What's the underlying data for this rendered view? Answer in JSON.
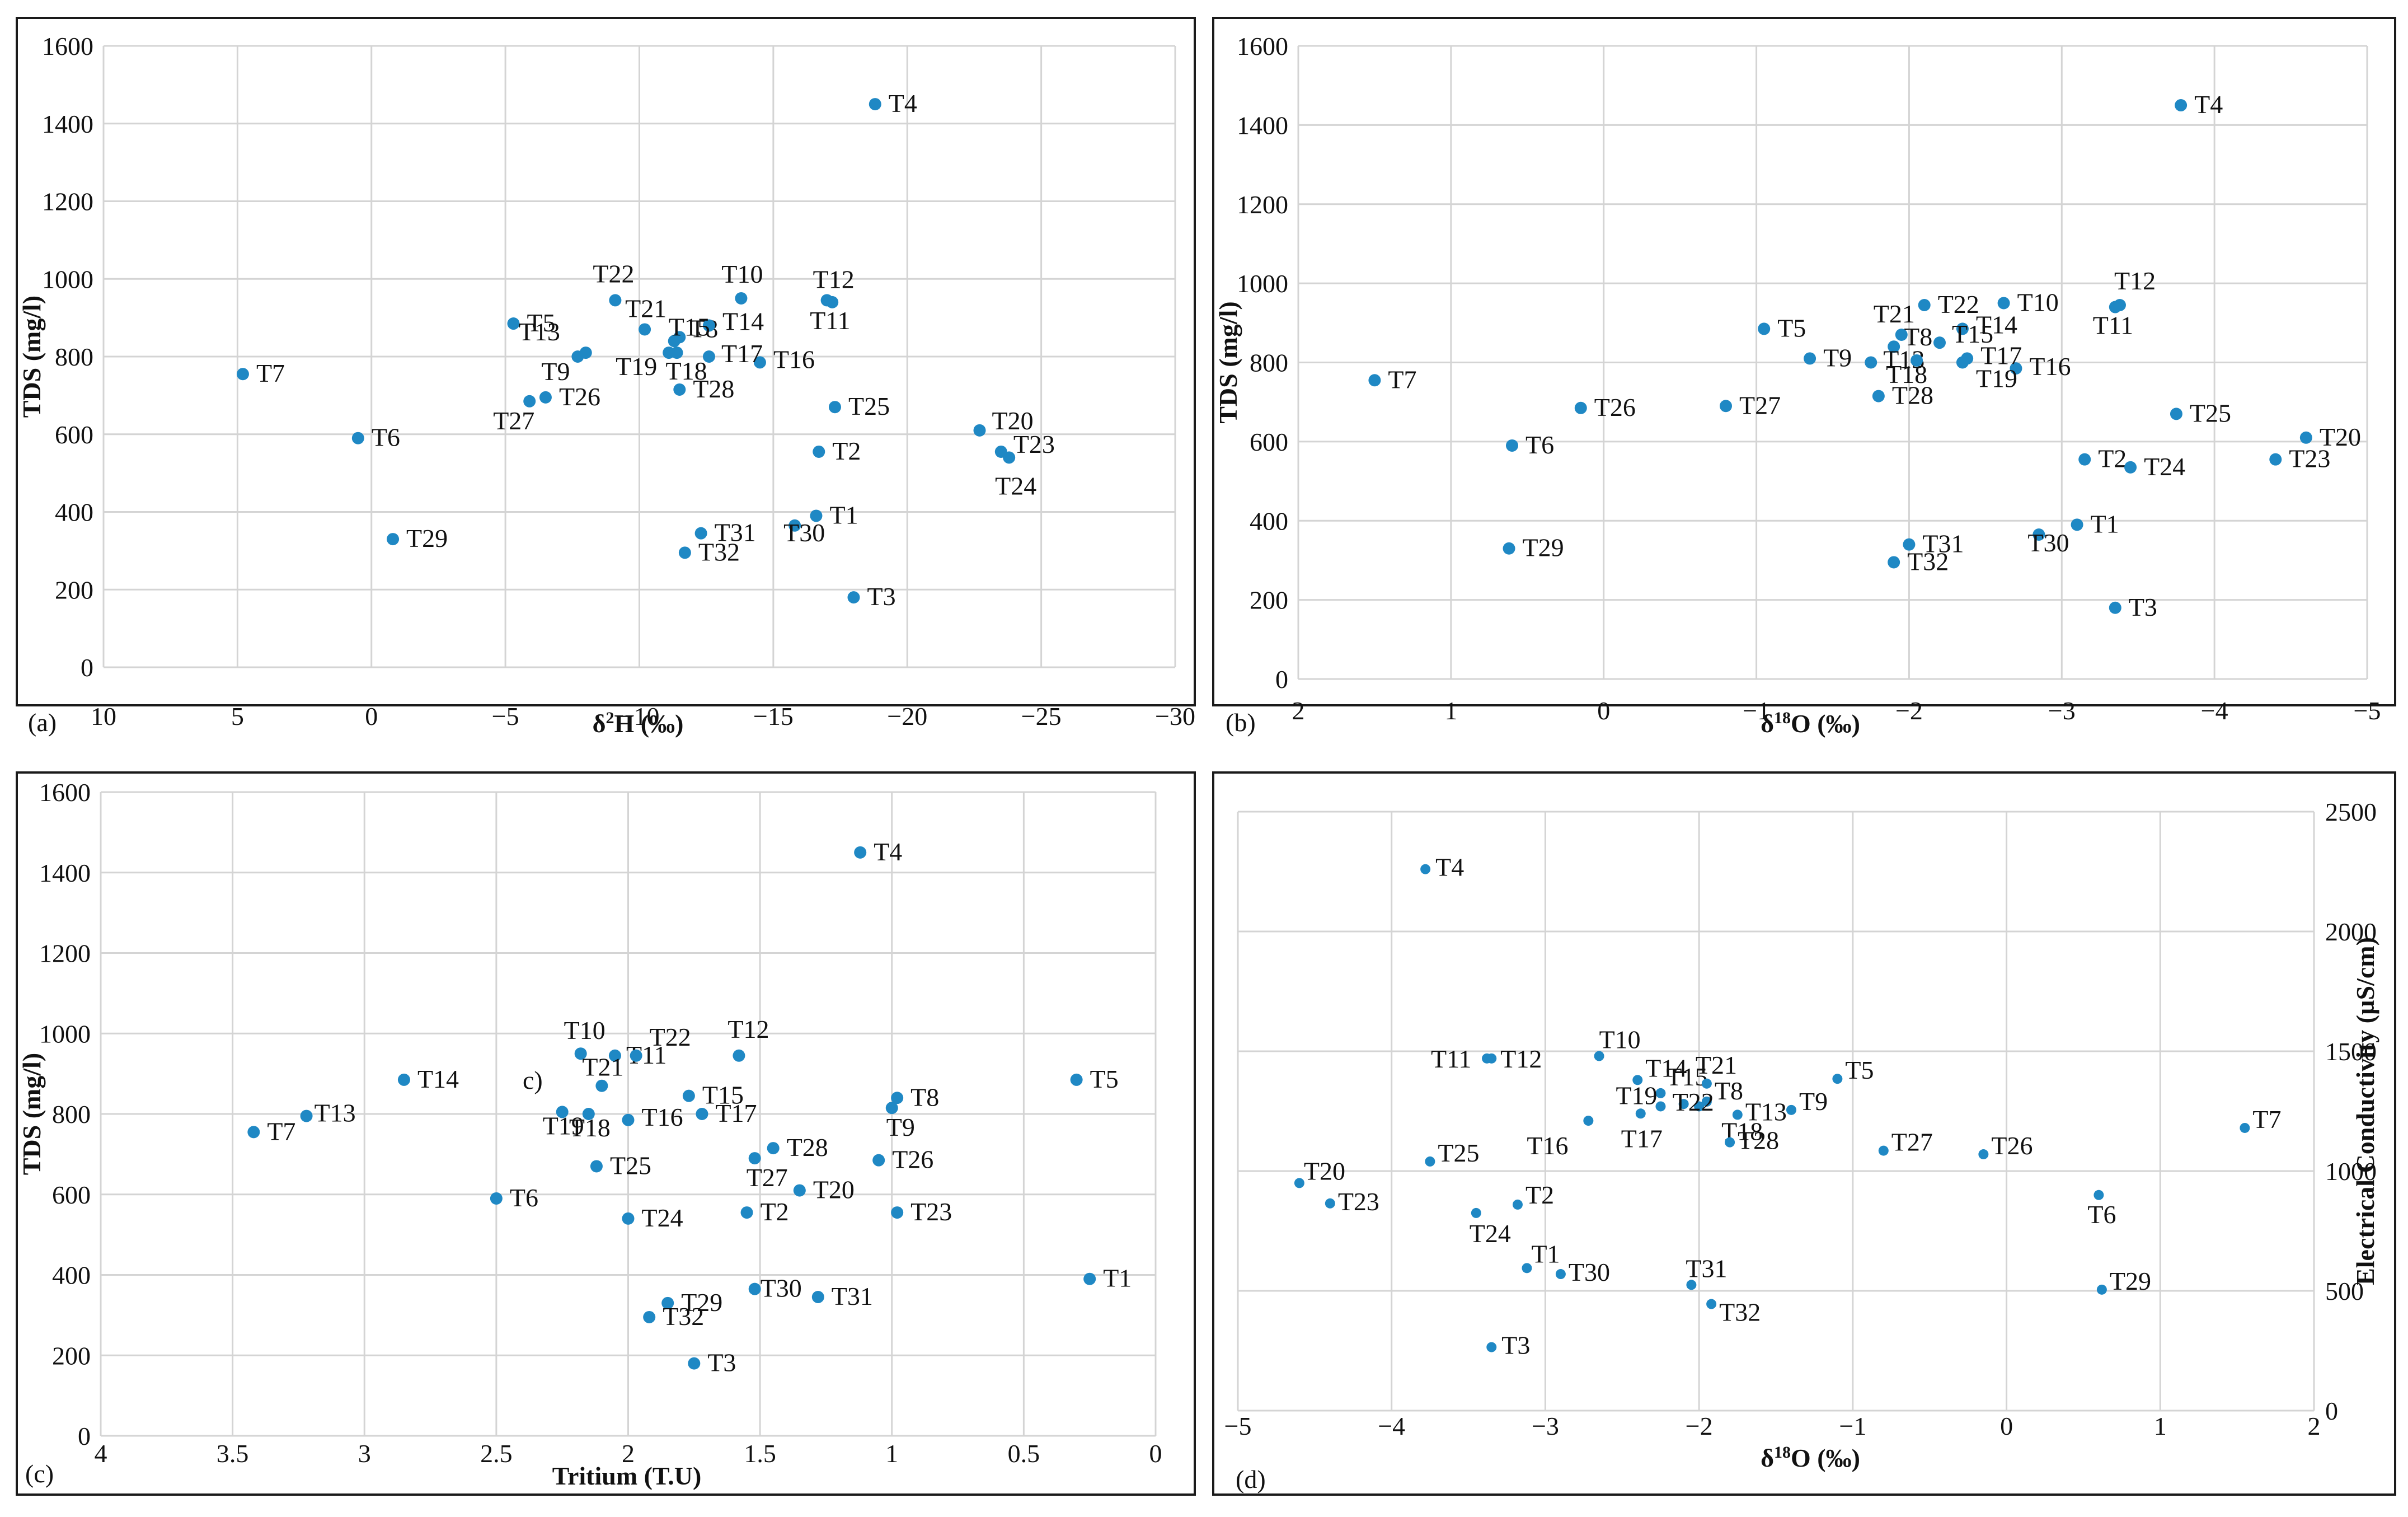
{
  "chart_data": [
    {
      "type": "scatter",
      "tag": "(a)",
      "xlabel_parts": [
        "δ",
        "2",
        "H (‰)"
      ],
      "ylabel": "TDS (mg/l)",
      "xlim": [
        10,
        -30
      ],
      "ylim": [
        0,
        1600
      ],
      "xticks": [
        10,
        5,
        0,
        -5,
        -10,
        -15,
        -20,
        -25,
        -30
      ],
      "yticks": [
        0,
        200,
        400,
        600,
        800,
        1000,
        1200,
        1400,
        1600
      ],
      "y_side": "left",
      "points": [
        {
          "label": "T1",
          "x": -16.6,
          "y": 390
        },
        {
          "label": "T2",
          "x": -16.7,
          "y": 555
        },
        {
          "label": "T3",
          "x": -18.0,
          "y": 180
        },
        {
          "label": "T4",
          "x": -18.8,
          "y": 1450
        },
        {
          "label": "T5",
          "x": -5.3,
          "y": 885
        },
        {
          "label": "T6",
          "x": 0.5,
          "y": 590
        },
        {
          "label": "T7",
          "x": 4.8,
          "y": 755
        },
        {
          "label": "T8",
          "x": -11.5,
          "y": 850
        },
        {
          "label": "T9",
          "x": -7.7,
          "y": 800
        },
        {
          "label": "T10",
          "x": -13.8,
          "y": 950
        },
        {
          "label": "T11",
          "x": -17.2,
          "y": 940
        },
        {
          "label": "T12",
          "x": -17.0,
          "y": 945
        },
        {
          "label": "T13",
          "x": -8.0,
          "y": 810
        },
        {
          "label": "T14",
          "x": -12.6,
          "y": 880
        },
        {
          "label": "T15",
          "x": -11.3,
          "y": 840
        },
        {
          "label": "T16",
          "x": -14.5,
          "y": 785
        },
        {
          "label": "T17",
          "x": -12.6,
          "y": 800
        },
        {
          "label": "T18",
          "x": -11.4,
          "y": 810
        },
        {
          "label": "T19",
          "x": -11.1,
          "y": 810
        },
        {
          "label": "T20",
          "x": -22.7,
          "y": 610
        },
        {
          "label": "T21",
          "x": -10.2,
          "y": 870
        },
        {
          "label": "T22",
          "x": -9.1,
          "y": 945
        },
        {
          "label": "T23",
          "x": -23.5,
          "y": 555
        },
        {
          "label": "T24",
          "x": -23.8,
          "y": 540
        },
        {
          "label": "T25",
          "x": -17.3,
          "y": 670
        },
        {
          "label": "T26",
          "x": -6.5,
          "y": 695
        },
        {
          "label": "T27",
          "x": -5.9,
          "y": 685
        },
        {
          "label": "T28",
          "x": -11.5,
          "y": 715
        },
        {
          "label": "T29",
          "x": -0.8,
          "y": 330
        },
        {
          "label": "T30",
          "x": -15.8,
          "y": 365
        },
        {
          "label": "T31",
          "x": -12.3,
          "y": 345
        },
        {
          "label": "T32",
          "x": -11.7,
          "y": 295
        }
      ]
    },
    {
      "type": "scatter",
      "tag": "(b)",
      "xlabel_parts": [
        "δ",
        "18",
        "O (‰)"
      ],
      "ylabel": "TDS (mg/l)",
      "xlim": [
        2,
        -5
      ],
      "ylim": [
        0,
        1600
      ],
      "xticks": [
        2,
        1,
        0,
        -1,
        -2,
        -3,
        -4,
        -5
      ],
      "yticks": [
        0,
        200,
        400,
        600,
        800,
        1000,
        1200,
        1400,
        1600
      ],
      "y_side": "left",
      "points": [
        {
          "label": "T1",
          "x": -3.1,
          "y": 390
        },
        {
          "label": "T2",
          "x": -3.15,
          "y": 555
        },
        {
          "label": "T3",
          "x": -3.35,
          "y": 180
        },
        {
          "label": "T4",
          "x": -3.78,
          "y": 1450
        },
        {
          "label": "T5",
          "x": -1.05,
          "y": 885
        },
        {
          "label": "T6",
          "x": 0.6,
          "y": 590
        },
        {
          "label": "T7",
          "x": 1.5,
          "y": 755
        },
        {
          "label": "T8",
          "x": -1.9,
          "y": 840
        },
        {
          "label": "T9",
          "x": -1.35,
          "y": 810
        },
        {
          "label": "T10",
          "x": -2.62,
          "y": 950
        },
        {
          "label": "T11",
          "x": -3.35,
          "y": 940
        },
        {
          "label": "T12",
          "x": -3.38,
          "y": 945
        },
        {
          "label": "T13",
          "x": -1.75,
          "y": 800
        },
        {
          "label": "T14",
          "x": -2.35,
          "y": 885
        },
        {
          "label": "T15",
          "x": -2.2,
          "y": 850
        },
        {
          "label": "T16",
          "x": -2.7,
          "y": 785
        },
        {
          "label": "T17",
          "x": -2.38,
          "y": 810
        },
        {
          "label": "T18",
          "x": -2.05,
          "y": 805
        },
        {
          "label": "T19",
          "x": -2.35,
          "y": 800
        },
        {
          "label": "T20",
          "x": -4.6,
          "y": 610
        },
        {
          "label": "T21",
          "x": -1.95,
          "y": 870
        },
        {
          "label": "T22",
          "x": -2.1,
          "y": 945
        },
        {
          "label": "T23",
          "x": -4.4,
          "y": 555
        },
        {
          "label": "T24",
          "x": -3.45,
          "y": 535
        },
        {
          "label": "T25",
          "x": -3.75,
          "y": 670
        },
        {
          "label": "T26",
          "x": 0.15,
          "y": 685
        },
        {
          "label": "T27",
          "x": -0.8,
          "y": 690
        },
        {
          "label": "T28",
          "x": -1.8,
          "y": 715
        },
        {
          "label": "T29",
          "x": 0.62,
          "y": 330
        },
        {
          "label": "T30",
          "x": -2.85,
          "y": 365
        },
        {
          "label": "T31",
          "x": -2.0,
          "y": 340
        },
        {
          "label": "T32",
          "x": -1.9,
          "y": 295
        }
      ]
    },
    {
      "type": "scatter",
      "tag": "(c)",
      "xlabel_parts": [
        "Tritium (T.U)"
      ],
      "ylabel": "TDS (mg/l)",
      "xlim": [
        4,
        0
      ],
      "ylim": [
        0,
        1600
      ],
      "xticks": [
        4,
        3.5,
        3,
        2.5,
        2,
        1.5,
        1,
        0.5,
        0
      ],
      "yticks": [
        0,
        200,
        400,
        600,
        800,
        1000,
        1200,
        1400,
        1600
      ],
      "y_side": "left",
      "inner_note": "c)",
      "points": [
        {
          "label": "T1",
          "x": 0.25,
          "y": 390
        },
        {
          "label": "T2",
          "x": 1.55,
          "y": 555
        },
        {
          "label": "T3",
          "x": 1.75,
          "y": 180
        },
        {
          "label": "T4",
          "x": 1.12,
          "y": 1450
        },
        {
          "label": "T5",
          "x": 0.3,
          "y": 885
        },
        {
          "label": "T6",
          "x": 2.5,
          "y": 590
        },
        {
          "label": "T7",
          "x": 3.42,
          "y": 755
        },
        {
          "label": "T8",
          "x": 0.98,
          "y": 840
        },
        {
          "label": "T9",
          "x": 1.0,
          "y": 815
        },
        {
          "label": "T10",
          "x": 2.18,
          "y": 950
        },
        {
          "label": "T11",
          "x": 2.05,
          "y": 945
        },
        {
          "label": "T12",
          "x": 1.58,
          "y": 945
        },
        {
          "label": "T13",
          "x": 3.22,
          "y": 795
        },
        {
          "label": "T14",
          "x": 2.85,
          "y": 885
        },
        {
          "label": "T15",
          "x": 1.77,
          "y": 845
        },
        {
          "label": "T16",
          "x": 2.0,
          "y": 785
        },
        {
          "label": "T17",
          "x": 1.72,
          "y": 800
        },
        {
          "label": "T18",
          "x": 2.15,
          "y": 800
        },
        {
          "label": "T19",
          "x": 2.25,
          "y": 805
        },
        {
          "label": "T20",
          "x": 1.35,
          "y": 610
        },
        {
          "label": "T21",
          "x": 2.1,
          "y": 870
        },
        {
          "label": "T22",
          "x": 1.97,
          "y": 945
        },
        {
          "label": "T23",
          "x": 0.98,
          "y": 555
        },
        {
          "label": "T24",
          "x": 2.0,
          "y": 540
        },
        {
          "label": "T25",
          "x": 2.12,
          "y": 670
        },
        {
          "label": "T26",
          "x": 1.05,
          "y": 685
        },
        {
          "label": "T27",
          "x": 1.52,
          "y": 690
        },
        {
          "label": "T28",
          "x": 1.45,
          "y": 715
        },
        {
          "label": "T29",
          "x": 1.85,
          "y": 330
        },
        {
          "label": "T30",
          "x": 1.52,
          "y": 365
        },
        {
          "label": "T31",
          "x": 1.28,
          "y": 345
        },
        {
          "label": "T32",
          "x": 1.92,
          "y": 295
        }
      ]
    },
    {
      "type": "scatter",
      "tag": "(d)",
      "xlabel_parts": [
        "δ",
        "18",
        "O (‰)"
      ],
      "ylabel": "Electrical Conductivity (µS/cm)",
      "xlim": [
        -5,
        2
      ],
      "ylim": [
        0,
        2500
      ],
      "xticks": [
        -5,
        -4,
        -3,
        -2,
        -1,
        0,
        1,
        2
      ],
      "yticks": [
        0,
        500,
        1000,
        1500,
        2000,
        2500
      ],
      "y_side": "right",
      "points": [
        {
          "label": "T1",
          "x": -3.12,
          "y": 595
        },
        {
          "label": "T2",
          "x": -3.18,
          "y": 860
        },
        {
          "label": "T3",
          "x": -3.35,
          "y": 265
        },
        {
          "label": "T4",
          "x": -3.78,
          "y": 2260
        },
        {
          "label": "T5",
          "x": -1.1,
          "y": 1385
        },
        {
          "label": "T6",
          "x": 0.6,
          "y": 900
        },
        {
          "label": "T7",
          "x": 1.55,
          "y": 1180
        },
        {
          "label": "T8",
          "x": -1.95,
          "y": 1290
        },
        {
          "label": "T9",
          "x": -1.4,
          "y": 1255
        },
        {
          "label": "T10",
          "x": -2.65,
          "y": 1480
        },
        {
          "label": "T11",
          "x": -3.38,
          "y": 1470
        },
        {
          "label": "T12",
          "x": -3.35,
          "y": 1470
        },
        {
          "label": "T13",
          "x": -1.75,
          "y": 1235
        },
        {
          "label": "T14",
          "x": -2.4,
          "y": 1380
        },
        {
          "label": "T15",
          "x": -2.25,
          "y": 1325
        },
        {
          "label": "T16",
          "x": -2.72,
          "y": 1210
        },
        {
          "label": "T17",
          "x": -2.38,
          "y": 1240
        },
        {
          "label": "T18",
          "x": -2.0,
          "y": 1270
        },
        {
          "label": "T19",
          "x": -2.25,
          "y": 1270
        },
        {
          "label": "T20",
          "x": -4.6,
          "y": 950
        },
        {
          "label": "T21",
          "x": -1.95,
          "y": 1365
        },
        {
          "label": "T22",
          "x": -2.1,
          "y": 1280
        },
        {
          "label": "T23",
          "x": -4.4,
          "y": 865
        },
        {
          "label": "T24",
          "x": -3.45,
          "y": 825
        },
        {
          "label": "T25",
          "x": -3.75,
          "y": 1040
        },
        {
          "label": "T26",
          "x": -0.15,
          "y": 1070
        },
        {
          "label": "T27",
          "x": -0.8,
          "y": 1085
        },
        {
          "label": "T28",
          "x": -1.8,
          "y": 1120
        },
        {
          "label": "T29",
          "x": 0.62,
          "y": 505
        },
        {
          "label": "T30",
          "x": -2.9,
          "y": 570
        },
        {
          "label": "T31",
          "x": -2.05,
          "y": 525
        },
        {
          "label": "T32",
          "x": -1.92,
          "y": 445
        }
      ]
    }
  ],
  "colors": {
    "marker": "#1f88c4",
    "grid": "#d4d4d4",
    "frame": "#1a1a1a",
    "text": "#111111"
  }
}
